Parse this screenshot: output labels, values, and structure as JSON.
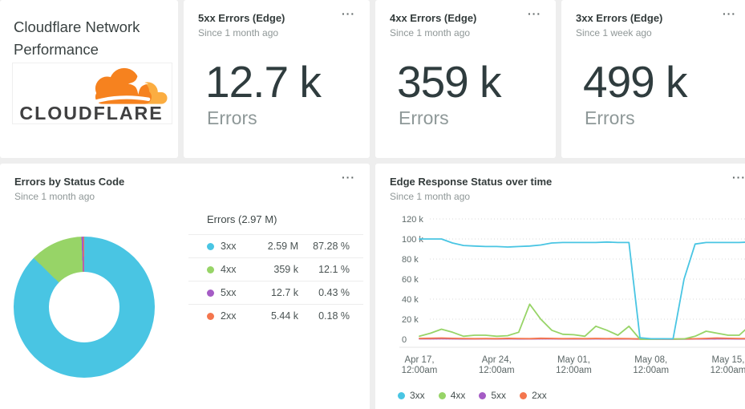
{
  "page_bg": "#eeeeee",
  "menu_icon": "···",
  "title_card": {
    "title": "Cloudflare Network Performance",
    "logo_text": "CLOUDFLARE",
    "logo_orange": "#F6821F",
    "logo_light_orange": "#FBAD41",
    "logo_text_color": "#404041"
  },
  "metric_cards": [
    {
      "title": "5xx Errors (Edge)",
      "subtitle": "Since 1 month ago",
      "value": "12.7 k",
      "unit_label": "Errors"
    },
    {
      "title": "4xx Errors (Edge)",
      "subtitle": "Since 1 month ago",
      "value": "359 k",
      "unit_label": "Errors"
    },
    {
      "title": "3xx Errors (Edge)",
      "subtitle": "Since 1 week ago",
      "value": "499 k",
      "unit_label": "Errors"
    }
  ],
  "donut_card": {
    "title": "Errors by Status Code",
    "subtitle": "Since 1 month ago"
  },
  "timeseries_card": {
    "title": "Edge Response Status over time",
    "subtitle": "Since 1 month ago"
  },
  "chart_data": [
    {
      "type": "pie",
      "donut": true,
      "title": "Errors by Status Code",
      "total_label": "Errors (2.97 M)",
      "legend_position": "right",
      "slices": [
        {
          "label": "3xx",
          "value": 2590000,
          "display": "2.59 M",
          "pct": 87.28,
          "pct_label": "87.28 %",
          "color": "#49c5e3"
        },
        {
          "label": "4xx",
          "value": 359000,
          "display": "359 k",
          "pct": 12.1,
          "pct_label": "12.1 %",
          "color": "#97d467"
        },
        {
          "label": "5xx",
          "value": 12700,
          "display": "12.7 k",
          "pct": 0.43,
          "pct_label": "0.43 %",
          "color": "#a55cc5"
        },
        {
          "label": "2xx",
          "value": 5440,
          "display": "5.44 k",
          "pct": 0.18,
          "pct_label": "0.18 %",
          "color": "#f4764e"
        }
      ]
    },
    {
      "type": "line",
      "title": "Edge Response Status over time",
      "x_unit": "day",
      "x_range": [
        "Apr 17, 12:00am",
        "May 17, 12:00am"
      ],
      "ylim_k": [
        0,
        120
      ],
      "grid": "dotted-horizontal",
      "legend_position": "bottom-left",
      "y_ticks": [
        {
          "label": "120 k",
          "value": 120
        },
        {
          "label": "100 k",
          "value": 100
        },
        {
          "label": "80 k",
          "value": 80
        },
        {
          "label": "60 k",
          "value": 60
        },
        {
          "label": "40 k",
          "value": 40
        },
        {
          "label": "20 k",
          "value": 20
        },
        {
          "label": "0",
          "value": 0
        }
      ],
      "x_ticks": [
        {
          "index": 0,
          "line1": "Apr 17,",
          "line2": "12:00am"
        },
        {
          "index": 7,
          "line1": "Apr 24,",
          "line2": "12:00am"
        },
        {
          "index": 14,
          "line1": "May 01,",
          "line2": "12:00am"
        },
        {
          "index": 21,
          "line1": "May 08,",
          "line2": "12:00am"
        },
        {
          "index": 28,
          "line1": "May 15,",
          "line2": "12:00am"
        }
      ],
      "series": [
        {
          "name": "3xx",
          "color": "#49c5e3",
          "values_k": [
            100,
            100,
            100,
            96,
            93.5,
            93,
            92.5,
            92.5,
            92,
            92.5,
            93,
            94,
            96,
            96.5,
            96.5,
            96.5,
            96.5,
            97,
            96.5,
            96.5,
            1.5,
            0.5,
            0.5,
            0.4,
            60,
            95,
            96.5,
            96.5,
            96.5,
            96.5,
            97
          ]
        },
        {
          "name": "4xx",
          "color": "#97d467",
          "values_k": [
            3,
            6,
            10,
            7,
            3,
            4,
            4,
            3,
            3.5,
            7,
            35,
            20,
            9,
            5,
            4.5,
            3,
            13,
            9,
            4,
            13,
            0,
            0,
            0.3,
            0.3,
            0.3,
            3,
            8,
            6,
            4,
            4,
            14
          ]
        },
        {
          "name": "5xx",
          "color": "#a55cc5",
          "values_k": [
            0.4,
            0.4,
            0.5,
            0.4,
            0.3,
            0.3,
            0.4,
            0.3,
            0.4,
            0.3,
            0.3,
            0.4,
            0.4,
            0.3,
            0.3,
            0.3,
            0.4,
            0.3,
            0.3,
            0.3,
            0.2,
            0.1,
            0.1,
            0.1,
            0.2,
            0.3,
            0.3,
            0.4,
            0.4,
            0.3,
            0.3
          ]
        },
        {
          "name": "2xx",
          "color": "#f4764e",
          "values_k": [
            0.8,
            1,
            1.2,
            0.9,
            0.7,
            0.6,
            0.7,
            0.6,
            0.9,
            0.7,
            0.6,
            1,
            0.8,
            0.6,
            0.7,
            0.6,
            0.8,
            0.6,
            0.7,
            0.6,
            0.3,
            0.2,
            0.2,
            0.2,
            0.3,
            0.5,
            0.8,
            1.2,
            0.9,
            0.7,
            0.6
          ]
        }
      ]
    }
  ]
}
